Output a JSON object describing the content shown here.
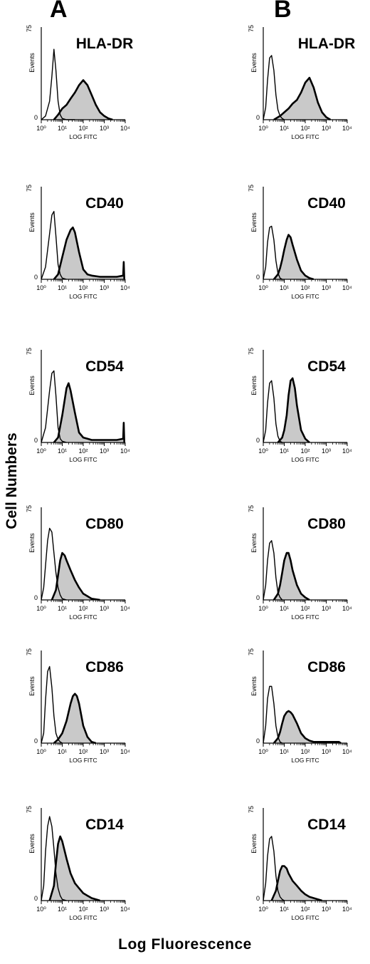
{
  "panels": [
    {
      "letter": "A"
    },
    {
      "letter": "B"
    }
  ],
  "y_axis_label": "Cell Numbers",
  "x_axis_label": "Log Fluorescence",
  "chart_data": [
    {
      "type": "area",
      "panel": "A",
      "title": "HLA-DR",
      "xlabel": "LOG FITC",
      "ylabel": "Events",
      "xscale": "log",
      "xlim": [
        1,
        10000
      ],
      "ylim": [
        0,
        75
      ],
      "xticks": [
        "10⁰",
        "10¹",
        "10²",
        "10³",
        "10⁴"
      ],
      "yticks": [
        "0",
        "75"
      ],
      "series": [
        {
          "x": [
            1,
            1.6,
            2.5,
            3.2,
            4,
            5,
            6.3,
            8,
            10,
            16,
            25,
            40
          ],
          "y": [
            0,
            3,
            15,
            35,
            57,
            40,
            15,
            4,
            1,
            0,
            0,
            0
          ]
        },
        {
          "x": [
            4,
            6.3,
            10,
            16,
            25,
            40,
            63,
            100,
            158,
            251,
            398,
            631,
            1000,
            1585,
            2512
          ],
          "y": [
            0,
            4,
            9,
            12,
            17,
            22,
            28,
            32,
            28,
            20,
            12,
            6,
            3,
            1,
            0
          ],
          "filled": true
        }
      ]
    },
    {
      "type": "area",
      "panel": "A",
      "title": "CD40",
      "xlabel": "LOG FITC",
      "ylabel": "Events",
      "xscale": "log",
      "xlim": [
        1,
        10000
      ],
      "ylim": [
        0,
        75
      ],
      "xticks": [
        "10⁰",
        "10¹",
        "10²",
        "10³",
        "10⁴"
      ],
      "yticks": [
        "0",
        "75"
      ],
      "series": [
        {
          "x": [
            1,
            1.6,
            2.5,
            3.2,
            4,
            5,
            6.3,
            8,
            10,
            16
          ],
          "y": [
            0,
            10,
            37,
            52,
            55,
            35,
            12,
            4,
            1,
            0
          ]
        },
        {
          "x": [
            4,
            6.3,
            10,
            16,
            25,
            32,
            40,
            63,
            100,
            158,
            251,
            631,
            1585,
            3981,
            8000,
            8500,
            9000
          ],
          "y": [
            0,
            4,
            18,
            32,
            40,
            42,
            38,
            22,
            8,
            4,
            3,
            2,
            2,
            2,
            3,
            14,
            0
          ],
          "filled": true
        }
      ]
    },
    {
      "type": "area",
      "panel": "A",
      "title": "CD54",
      "xlabel": "LOG FITC",
      "ylabel": "Events",
      "xscale": "log",
      "xlim": [
        1,
        10000
      ],
      "ylim": [
        0,
        75
      ],
      "xticks": [
        "10⁰",
        "10¹",
        "10²",
        "10³",
        "10⁴"
      ],
      "yticks": [
        "0",
        "75"
      ],
      "series": [
        {
          "x": [
            1,
            1.6,
            2.5,
            3.2,
            4,
            5,
            6.3,
            8,
            10,
            16
          ],
          "y": [
            0,
            12,
            42,
            56,
            58,
            38,
            12,
            3,
            1,
            0
          ]
        },
        {
          "x": [
            4,
            6.3,
            10,
            16,
            20,
            25,
            40,
            63,
            100,
            158,
            251,
            631,
            1585,
            3981,
            8000,
            8500,
            9000
          ],
          "y": [
            0,
            4,
            22,
            44,
            48,
            42,
            24,
            8,
            4,
            3,
            2,
            2,
            2,
            2,
            3,
            16,
            0
          ],
          "filled": true
        }
      ]
    },
    {
      "type": "area",
      "panel": "A",
      "title": "CD80",
      "xlabel": "LOG FITC",
      "ylabel": "Events",
      "xscale": "log",
      "xlim": [
        1,
        10000
      ],
      "ylim": [
        0,
        75
      ],
      "xticks": [
        "10⁰",
        "10¹",
        "10²",
        "10³",
        "10⁴"
      ],
      "yticks": [
        "0",
        "75"
      ],
      "series": [
        {
          "x": [
            1,
            1.3,
            1.6,
            2,
            2.5,
            3.2,
            4,
            5,
            6.3,
            8,
            10,
            16
          ],
          "y": [
            0,
            10,
            28,
            48,
            58,
            55,
            38,
            22,
            10,
            4,
            1,
            0
          ]
        },
        {
          "x": [
            3.2,
            5,
            6.3,
            8,
            10,
            13,
            16,
            25,
            40,
            63,
            100,
            158,
            251,
            631
          ],
          "y": [
            0,
            8,
            20,
            32,
            38,
            36,
            32,
            24,
            16,
            10,
            5,
            3,
            1,
            0
          ],
          "filled": true
        }
      ]
    },
    {
      "type": "area",
      "panel": "A",
      "title": "CD86",
      "xlabel": "LOG FITC",
      "ylabel": "Events",
      "xscale": "log",
      "xlim": [
        1,
        10000
      ],
      "ylim": [
        0,
        75
      ],
      "xticks": [
        "10⁰",
        "10¹",
        "10²",
        "10³",
        "10⁴"
      ],
      "yticks": [
        "0",
        "75"
      ],
      "series": [
        {
          "x": [
            1,
            1.3,
            1.6,
            2,
            2.5,
            3.2,
            4,
            5,
            6.3,
            8,
            10
          ],
          "y": [
            0,
            8,
            35,
            58,
            62,
            45,
            22,
            8,
            3,
            1,
            0
          ]
        },
        {
          "x": [
            4,
            6.3,
            10,
            16,
            25,
            32,
            40,
            50,
            63,
            100,
            158,
            251,
            398
          ],
          "y": [
            0,
            3,
            8,
            18,
            32,
            38,
            40,
            38,
            32,
            14,
            5,
            1,
            0
          ],
          "filled": true
        }
      ]
    },
    {
      "type": "area",
      "panel": "A",
      "title": "CD14",
      "xlabel": "LOG FITC",
      "ylabel": "Events",
      "xscale": "log",
      "xlim": [
        1,
        10000
      ],
      "ylim": [
        0,
        75
      ],
      "xticks": [
        "10⁰",
        "10¹",
        "10²",
        "10³",
        "10⁴"
      ],
      "yticks": [
        "0",
        "75"
      ],
      "series": [
        {
          "x": [
            1,
            1.3,
            1.6,
            2,
            2.5,
            3.2,
            4,
            5,
            6.3,
            8,
            10,
            16
          ],
          "y": [
            0,
            12,
            40,
            60,
            68,
            60,
            42,
            22,
            10,
            4,
            1,
            0
          ]
        },
        {
          "x": [
            2.5,
            4,
            5,
            6.3,
            8,
            10,
            16,
            25,
            40,
            63,
            100,
            158,
            251,
            398,
            631
          ],
          "y": [
            0,
            12,
            30,
            46,
            52,
            48,
            34,
            22,
            14,
            10,
            6,
            4,
            2,
            1,
            0
          ],
          "filled": true
        }
      ]
    },
    {
      "type": "area",
      "panel": "B",
      "title": "HLA-DR",
      "xlabel": "LOG FITC",
      "ylabel": "Events",
      "xscale": "log",
      "xlim": [
        1,
        10000
      ],
      "ylim": [
        0,
        75
      ],
      "xticks": [
        "10⁰",
        "10¹",
        "10²",
        "10³",
        "10⁴"
      ],
      "yticks": [
        "0",
        "75"
      ],
      "series": [
        {
          "x": [
            1,
            1.3,
            1.6,
            2,
            2.5,
            3.2,
            4,
            5,
            6.3,
            8,
            10
          ],
          "y": [
            0,
            10,
            32,
            50,
            52,
            40,
            20,
            8,
            3,
            1,
            0
          ]
        },
        {
          "x": [
            3.2,
            6.3,
            10,
            16,
            25,
            40,
            63,
            100,
            158,
            251,
            398,
            631,
            1000,
            1585
          ],
          "y": [
            0,
            3,
            6,
            9,
            13,
            16,
            22,
            30,
            34,
            26,
            14,
            6,
            2,
            0
          ],
          "filled": true
        }
      ]
    },
    {
      "type": "area",
      "panel": "B",
      "title": "CD40",
      "xlabel": "LOG FITC",
      "ylabel": "Events",
      "xscale": "log",
      "xlim": [
        1,
        10000
      ],
      "ylim": [
        0,
        75
      ],
      "xticks": [
        "10⁰",
        "10¹",
        "10²",
        "10³",
        "10⁴"
      ],
      "yticks": [
        "0",
        "75"
      ],
      "series": [
        {
          "x": [
            1,
            1.3,
            1.6,
            2,
            2.5,
            3.2,
            4,
            5,
            6.3,
            8
          ],
          "y": [
            0,
            10,
            30,
            42,
            43,
            32,
            15,
            5,
            1,
            0
          ]
        },
        {
          "x": [
            3.2,
            5,
            6.3,
            8,
            10,
            13,
            16,
            20,
            25,
            40,
            63,
            100,
            158,
            251
          ],
          "y": [
            0,
            4,
            9,
            16,
            24,
            32,
            36,
            34,
            28,
            16,
            7,
            3,
            1,
            0
          ],
          "filled": true
        }
      ]
    },
    {
      "type": "area",
      "panel": "B",
      "title": "CD54",
      "xlabel": "LOG FITC",
      "ylabel": "Events",
      "xscale": "log",
      "xlim": [
        1,
        10000
      ],
      "ylim": [
        0,
        75
      ],
      "xticks": [
        "10⁰",
        "10¹",
        "10²",
        "10³",
        "10⁴"
      ],
      "yticks": [
        "0",
        "75"
      ],
      "series": [
        {
          "x": [
            1,
            1.3,
            1.6,
            2,
            2.5,
            3.2,
            4,
            5,
            6.3,
            8
          ],
          "y": [
            0,
            10,
            32,
            48,
            50,
            36,
            15,
            5,
            1,
            0
          ]
        },
        {
          "x": [
            5,
            8,
            10,
            13,
            16,
            20,
            25,
            32,
            40,
            63,
            100,
            158
          ],
          "y": [
            0,
            4,
            10,
            22,
            38,
            50,
            52,
            44,
            30,
            10,
            3,
            0
          ],
          "filled": true
        }
      ]
    },
    {
      "type": "area",
      "panel": "B",
      "title": "CD80",
      "xlabel": "LOG FITC",
      "ylabel": "Events",
      "xscale": "log",
      "xlim": [
        1,
        10000
      ],
      "ylim": [
        0,
        75
      ],
      "xticks": [
        "10⁰",
        "10¹",
        "10²",
        "10³",
        "10⁴"
      ],
      "yticks": [
        "0",
        "75"
      ],
      "series": [
        {
          "x": [
            1,
            1.3,
            1.6,
            2,
            2.5,
            3.2,
            4,
            5,
            6.3,
            8
          ],
          "y": [
            0,
            12,
            32,
            46,
            48,
            38,
            18,
            6,
            2,
            0
          ]
        },
        {
          "x": [
            3.2,
            5,
            6.3,
            8,
            10,
            13,
            16,
            20,
            25,
            40,
            63,
            100,
            158
          ],
          "y": [
            0,
            5,
            12,
            22,
            32,
            38,
            38,
            32,
            24,
            12,
            5,
            2,
            0
          ],
          "filled": true
        }
      ]
    },
    {
      "type": "area",
      "panel": "B",
      "title": "CD86",
      "xlabel": "LOG FITC",
      "ylabel": "Events",
      "xscale": "log",
      "xlim": [
        1,
        10000
      ],
      "ylim": [
        0,
        75
      ],
      "xticks": [
        "10⁰",
        "10¹",
        "10²",
        "10³",
        "10⁴"
      ],
      "yticks": [
        "0",
        "75"
      ],
      "series": [
        {
          "x": [
            1,
            1.3,
            1.6,
            2,
            2.5,
            3.2,
            4,
            5,
            6.3,
            8
          ],
          "y": [
            0,
            14,
            36,
            46,
            46,
            32,
            14,
            5,
            1,
            0
          ]
        },
        {
          "x": [
            3.2,
            5,
            6.3,
            8,
            10,
            13,
            16,
            20,
            25,
            40,
            63,
            100,
            158,
            251,
            631,
            3981,
            5000
          ],
          "y": [
            0,
            4,
            9,
            16,
            22,
            25,
            26,
            25,
            23,
            16,
            8,
            4,
            2,
            1,
            1,
            1,
            0
          ],
          "filled": true
        }
      ]
    },
    {
      "type": "area",
      "panel": "B",
      "title": "CD14",
      "xlabel": "LOG FITC",
      "ylabel": "Events",
      "xscale": "log",
      "xlim": [
        1,
        10000
      ],
      "ylim": [
        0,
        75
      ],
      "xticks": [
        "10⁰",
        "10¹",
        "10²",
        "10³",
        "10⁴"
      ],
      "yticks": [
        "0",
        "75"
      ],
      "series": [
        {
          "x": [
            1,
            1.3,
            1.6,
            2,
            2.5,
            3.2,
            4,
            5,
            6.3,
            8,
            10
          ],
          "y": [
            0,
            14,
            36,
            50,
            52,
            40,
            20,
            8,
            3,
            1,
            0
          ]
        },
        {
          "x": [
            2.5,
            4,
            5,
            6.3,
            8,
            10,
            13,
            16,
            25,
            40,
            63,
            100,
            158,
            251,
            398,
            631
          ],
          "y": [
            0,
            8,
            16,
            24,
            28,
            28,
            26,
            22,
            16,
            12,
            8,
            5,
            3,
            2,
            1,
            0
          ],
          "filled": true
        }
      ]
    }
  ]
}
